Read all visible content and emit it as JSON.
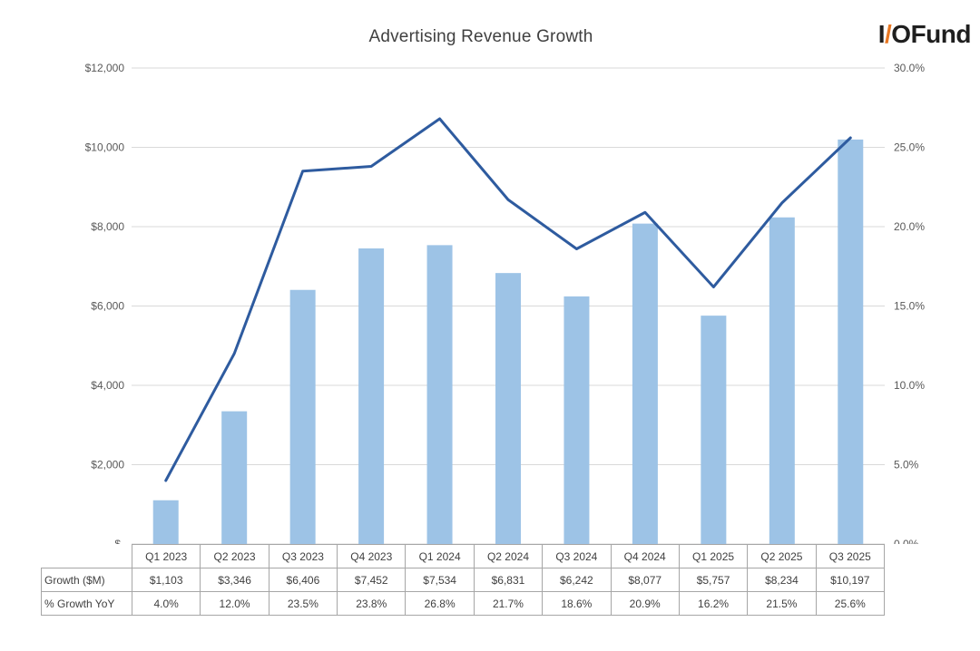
{
  "title": "Advertising Revenue Growth",
  "logo": {
    "io": "I",
    "slash": "/",
    "o": "O",
    "fund": "Fund"
  },
  "chart_data": {
    "type": "combo-bar-line",
    "title": "Advertising Revenue Growth",
    "categories": [
      "Q1 2023",
      "Q2 2023",
      "Q3 2023",
      "Q4 2023",
      "Q1 2024",
      "Q2 2024",
      "Q3 2024",
      "Q4 2024",
      "Q1 2025",
      "Q2 2025",
      "Q3 2025"
    ],
    "series": [
      {
        "name": "Growth ($M)",
        "type": "bar",
        "axis": "left",
        "color": "#9dc3e6",
        "values": [
          1103,
          3346,
          6406,
          7452,
          7534,
          6831,
          6242,
          8077,
          5757,
          8234,
          10197
        ],
        "labels": [
          "$1,103",
          "$3,346",
          "$6,406",
          "$7,452",
          "$7,534",
          "$6,831",
          "$6,242",
          "$8,077",
          "$5,757",
          "$8,234",
          "$10,197"
        ]
      },
      {
        "name": "% Growth YoY",
        "type": "line",
        "axis": "right",
        "color": "#2e5b9f",
        "values": [
          4.0,
          12.0,
          23.5,
          23.8,
          26.8,
          21.7,
          18.6,
          20.9,
          16.2,
          21.5,
          25.6
        ],
        "labels": [
          "4.0%",
          "12.0%",
          "23.5%",
          "23.8%",
          "26.8%",
          "21.7%",
          "18.6%",
          "20.9%",
          "16.2%",
          "21.5%",
          "25.6%"
        ]
      }
    ],
    "left_axis": {
      "min": 0,
      "max": 12000,
      "ticks": [
        "$-",
        "$2,000",
        "$4,000",
        "$6,000",
        "$8,000",
        "$10,000",
        "$12,000"
      ]
    },
    "right_axis": {
      "min": 0,
      "max": 30,
      "ticks": [
        "0.0%",
        "5.0%",
        "10.0%",
        "15.0%",
        "20.0%",
        "25.0%",
        "30.0%"
      ]
    },
    "grid": true,
    "legend": "none",
    "grid_color": "#d9d9d9"
  }
}
